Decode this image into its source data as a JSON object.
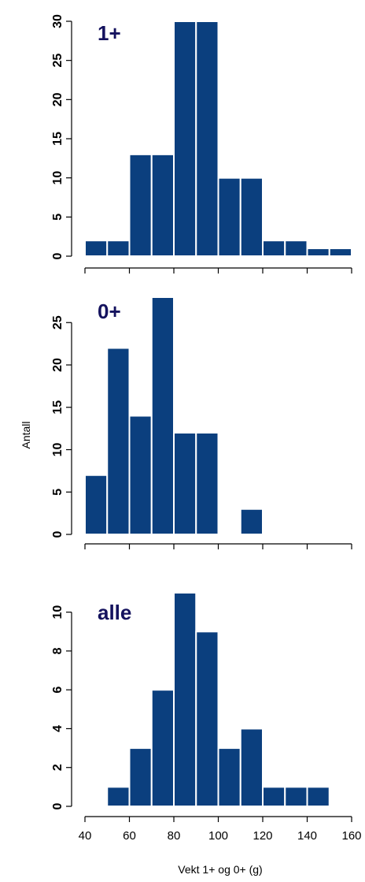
{
  "chart_data": [
    {
      "type": "bar",
      "panel_label": "1+",
      "bins": [
        [
          40,
          50
        ],
        [
          50,
          60
        ],
        [
          60,
          70
        ],
        [
          70,
          80
        ],
        [
          80,
          90
        ],
        [
          90,
          100
        ],
        [
          100,
          110
        ],
        [
          110,
          120
        ],
        [
          120,
          130
        ],
        [
          130,
          140
        ],
        [
          140,
          150
        ],
        [
          150,
          160
        ]
      ],
      "values": [
        2,
        2,
        13,
        13,
        30,
        30,
        10,
        10,
        2,
        2,
        1,
        1
      ],
      "y_ticks": [
        0,
        5,
        10,
        15,
        20,
        25,
        30
      ],
      "ylim": [
        0,
        30
      ],
      "xlim": [
        40,
        160
      ],
      "grid": false
    },
    {
      "type": "bar",
      "panel_label": "0+",
      "bins": [
        [
          40,
          50
        ],
        [
          50,
          60
        ],
        [
          60,
          70
        ],
        [
          70,
          80
        ],
        [
          80,
          90
        ],
        [
          90,
          100
        ],
        [
          100,
          110
        ],
        [
          110,
          120
        ],
        [
          120,
          130
        ],
        [
          130,
          140
        ],
        [
          140,
          150
        ],
        [
          150,
          160
        ]
      ],
      "values": [
        7,
        22,
        14,
        28,
        12,
        12,
        0,
        3,
        0,
        0,
        0,
        0
      ],
      "y_ticks": [
        0,
        5,
        10,
        15,
        20,
        25
      ],
      "ylim": [
        0,
        28
      ],
      "xlim": [
        40,
        160
      ],
      "grid": false
    },
    {
      "type": "bar",
      "panel_label": "alle",
      "bins": [
        [
          40,
          50
        ],
        [
          50,
          60
        ],
        [
          60,
          70
        ],
        [
          70,
          80
        ],
        [
          80,
          90
        ],
        [
          90,
          100
        ],
        [
          100,
          110
        ],
        [
          110,
          120
        ],
        [
          120,
          130
        ],
        [
          130,
          140
        ],
        [
          140,
          150
        ],
        [
          150,
          160
        ]
      ],
      "values": [
        0,
        1,
        3,
        6,
        11,
        9,
        3,
        4,
        1,
        1,
        1,
        0
      ],
      "y_ticks": [
        0,
        2,
        4,
        6,
        8,
        10
      ],
      "ylim": [
        0,
        11
      ],
      "xlim": [
        40,
        160
      ],
      "grid": false
    }
  ],
  "x_ticks": [
    40,
    60,
    80,
    100,
    120,
    140,
    160
  ],
  "x_tick_labels": [
    "40",
    "60",
    "80",
    "100",
    "120",
    "140",
    "160"
  ],
  "xlabel": "Vekt 1+ og 0+ (g)",
  "ylabel": "Antall",
  "colors": {
    "bar_fill": "#0b3f7e",
    "bar_edge": "#ffffff",
    "panel_label": "#14125e"
  }
}
